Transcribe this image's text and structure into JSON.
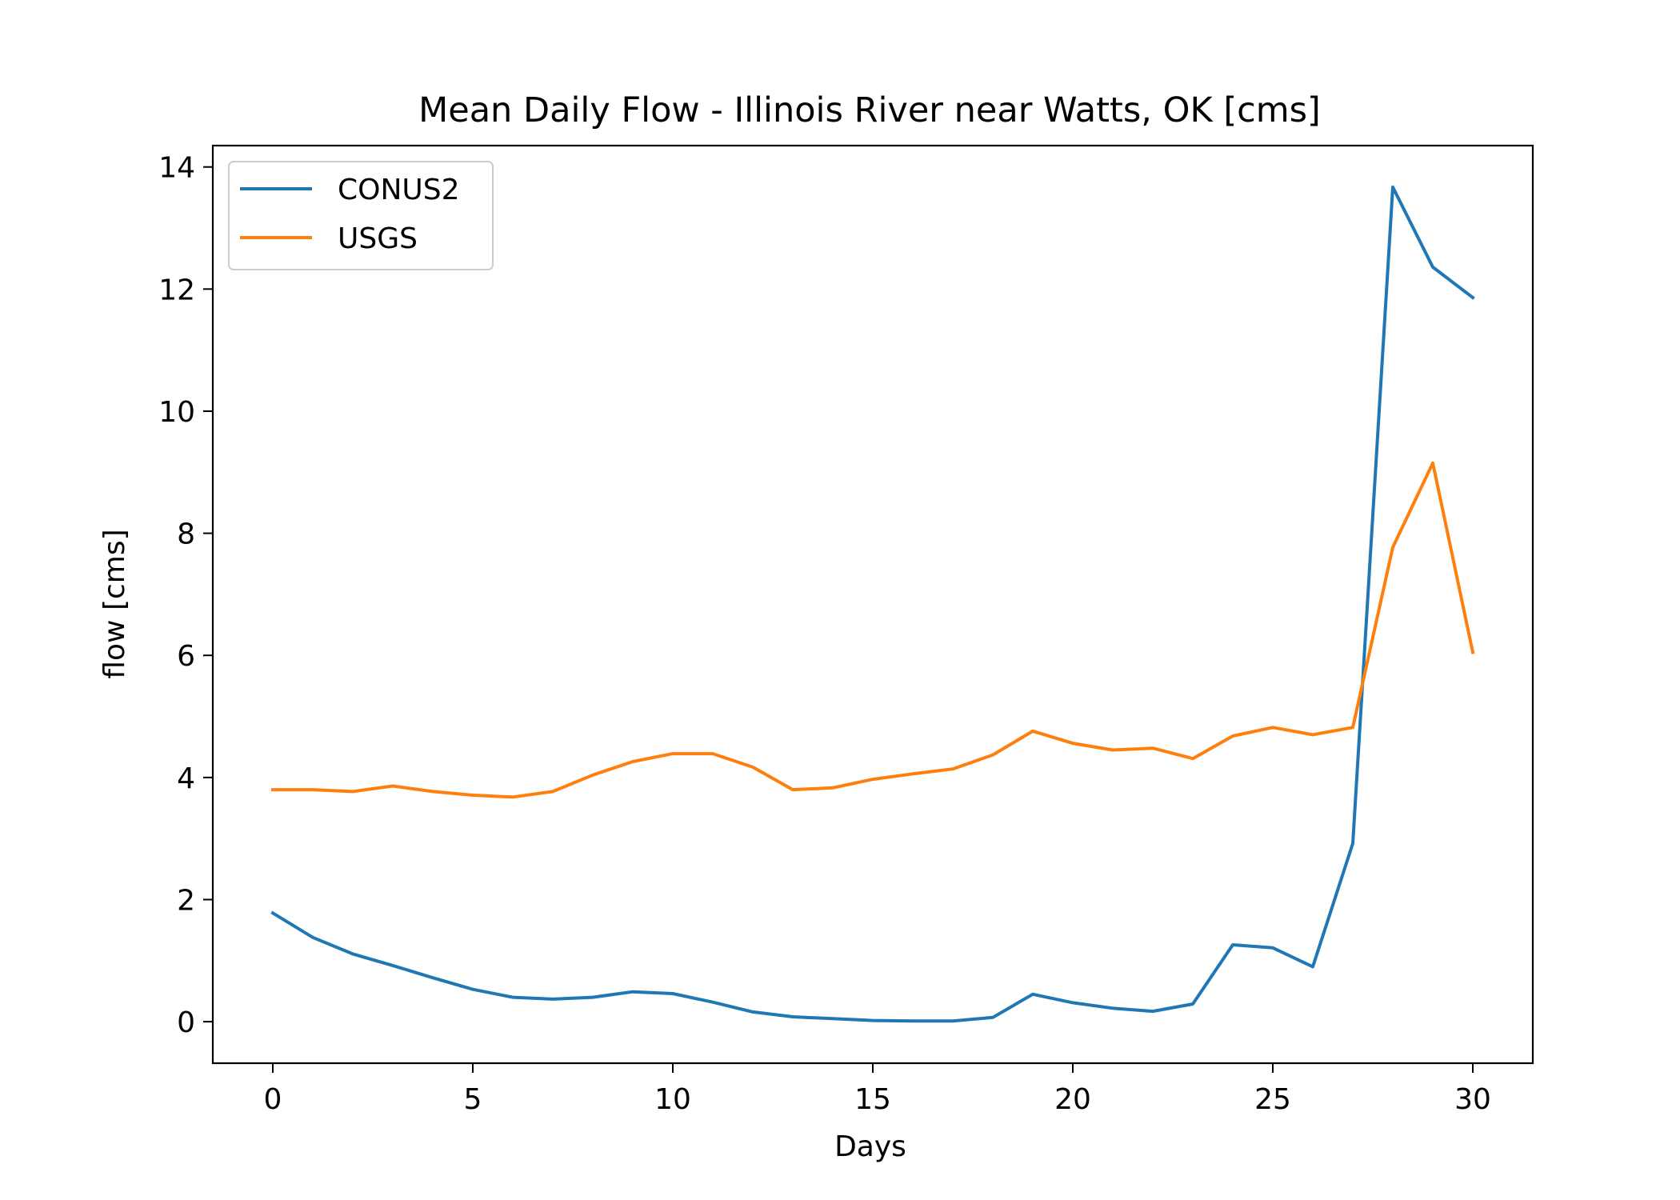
{
  "chart_data": {
    "type": "line",
    "title": "Mean Daily Flow - Illinois River near Watts, OK [cms]",
    "xlabel": "Days",
    "ylabel": "flow [cms]",
    "xlim": [
      -1.5,
      31.5
    ],
    "ylim": [
      -0.68,
      14.35
    ],
    "xticks": [
      0,
      5,
      10,
      15,
      20,
      25,
      30
    ],
    "yticks": [
      0,
      2,
      4,
      6,
      8,
      10,
      12,
      14
    ],
    "grid": false,
    "legend_position": "top-left",
    "x": [
      0,
      1,
      2,
      3,
      4,
      5,
      6,
      7,
      8,
      9,
      10,
      11,
      12,
      13,
      14,
      15,
      16,
      17,
      18,
      19,
      20,
      21,
      22,
      23,
      24,
      25,
      26,
      27,
      28,
      29,
      30
    ],
    "series": [
      {
        "name": "CONUS2",
        "color": "#1f77b4",
        "values": [
          1.78,
          1.38,
          1.11,
          0.92,
          0.72,
          0.53,
          0.4,
          0.37,
          0.4,
          0.49,
          0.46,
          0.32,
          0.16,
          0.08,
          0.05,
          0.02,
          0.01,
          0.01,
          0.07,
          0.45,
          0.31,
          0.22,
          0.17,
          0.29,
          1.26,
          1.21,
          0.9,
          2.92,
          13.67,
          12.36,
          11.86
        ]
      },
      {
        "name": "USGS",
        "color": "#ff7f0e",
        "values": [
          3.8,
          3.8,
          3.77,
          3.86,
          3.77,
          3.71,
          3.68,
          3.77,
          4.04,
          4.26,
          4.39,
          4.39,
          4.17,
          3.8,
          3.83,
          3.97,
          4.06,
          4.14,
          4.37,
          4.76,
          4.56,
          4.45,
          4.48,
          4.31,
          4.68,
          4.82,
          4.7,
          4.82,
          7.77,
          9.15,
          6.05
        ]
      }
    ]
  }
}
